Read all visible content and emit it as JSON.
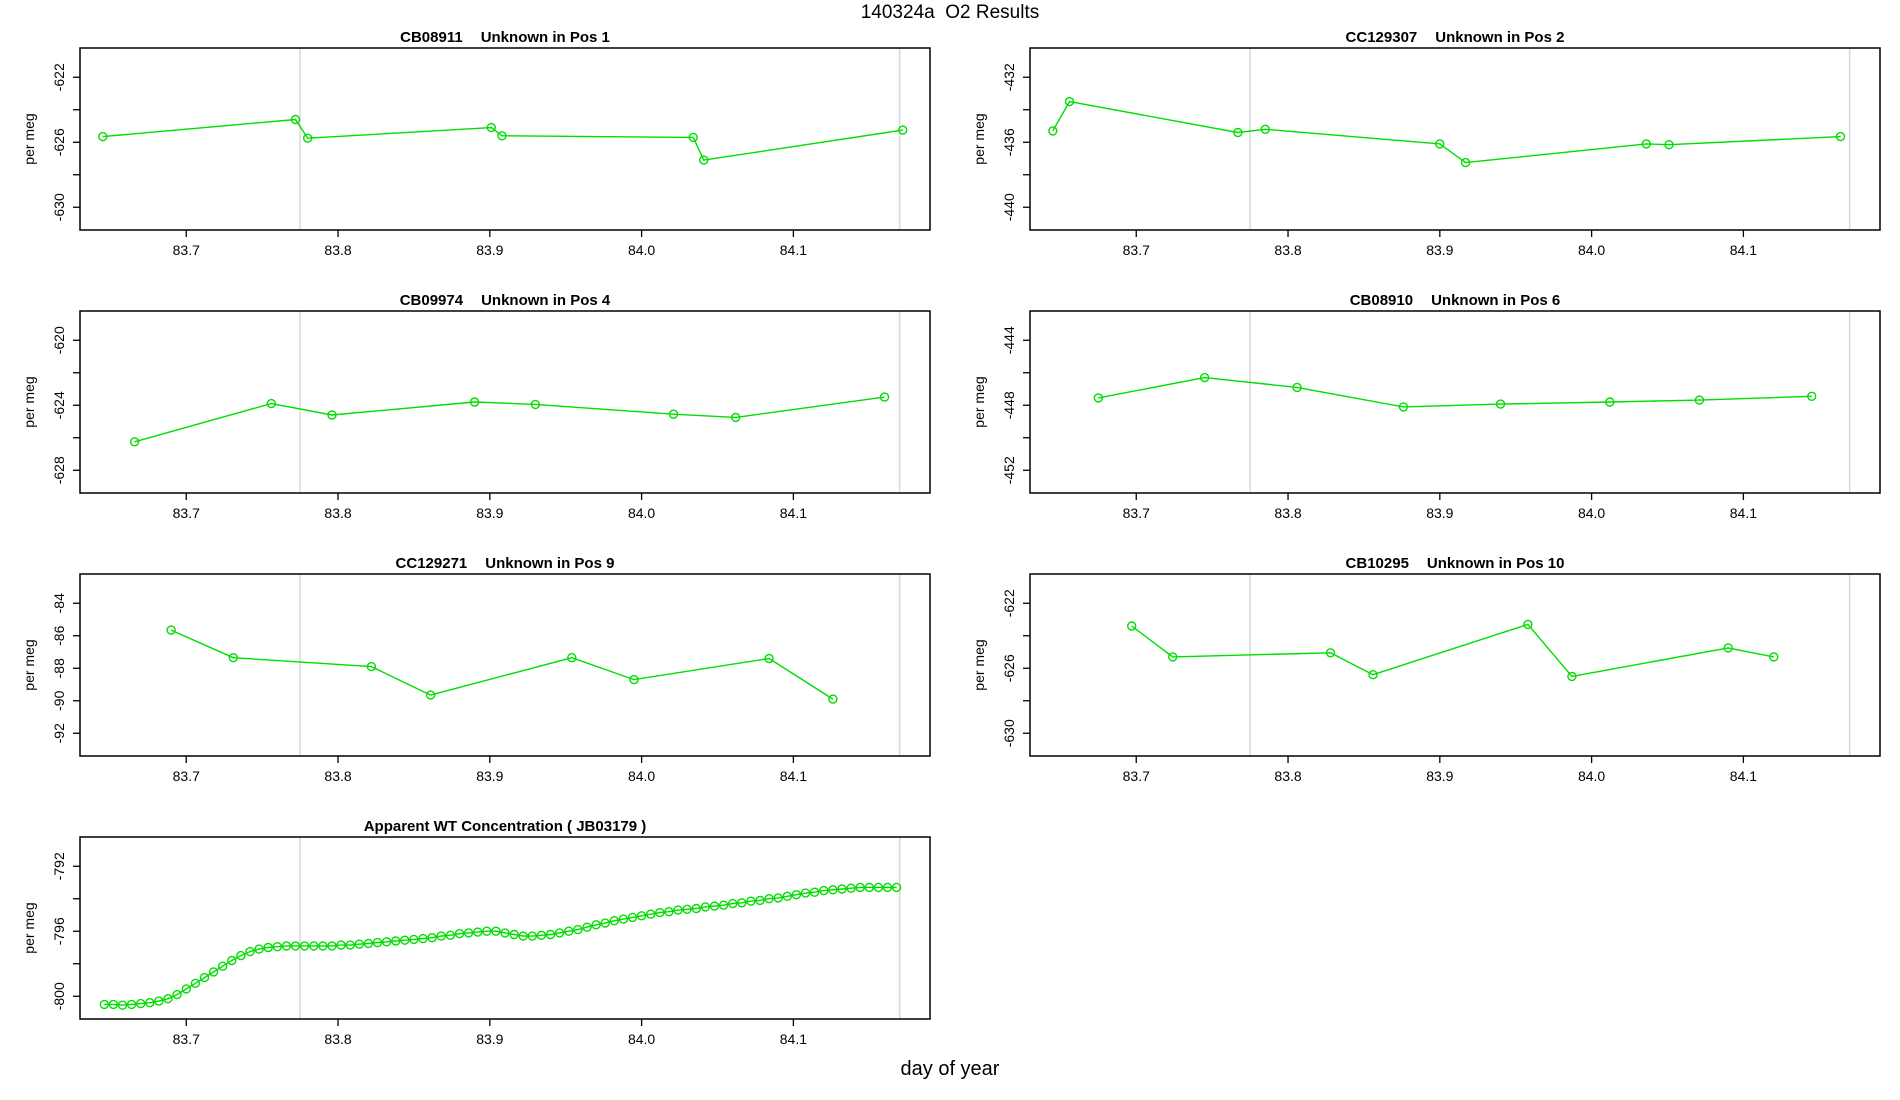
{
  "page_title": "140324a  O2 Results",
  "outer_xlabel": "day of year",
  "colors": {
    "series_green": "#00dd00",
    "reference_line_gray": "#d9d9d9",
    "axis_black": "#000000",
    "background": "#ffffff"
  },
  "axes_common": {
    "xlim": [
      83.63,
      84.19
    ],
    "xticks": [
      83.7,
      83.8,
      83.9,
      84.0,
      84.1
    ],
    "xtick_labels": [
      "83.7",
      "83.8",
      "83.9",
      "84.0",
      "84.1"
    ],
    "reference_vlines": [
      83.775,
      84.17
    ],
    "grid": "off",
    "marker": "open-circle",
    "line_type": "overplotted (line + markers)"
  },
  "chart_data": [
    {
      "type": "line",
      "panel_id": "CB08911",
      "title": {
        "id": "CB08911",
        "desc": "Unknown in Pos 1"
      },
      "ylabel": "per meg",
      "ylim": [
        -631.4,
        -620.2
      ],
      "yticks": [
        {
          "v": -630,
          "label": "-630"
        },
        {
          "v": -628,
          "label": ""
        },
        {
          "v": -626,
          "label": "-626"
        },
        {
          "v": -624,
          "label": ""
        },
        {
          "v": -622,
          "label": "-622"
        }
      ],
      "x": [
        83.645,
        83.772,
        83.78,
        83.901,
        83.908,
        84.034,
        84.041,
        84.172
      ],
      "y": [
        -625.65,
        -624.6,
        -625.75,
        -625.1,
        -625.6,
        -625.7,
        -627.1,
        -625.25
      ]
    },
    {
      "type": "line",
      "panel_id": "CC129307",
      "title": {
        "id": "CC129307",
        "desc": "Unknown in Pos 2"
      },
      "ylabel": "per meg",
      "ylim": [
        -441.4,
        -430.2
      ],
      "yticks": [
        {
          "v": -440,
          "label": "-440"
        },
        {
          "v": -438,
          "label": ""
        },
        {
          "v": -436,
          "label": "-436"
        },
        {
          "v": -434,
          "label": ""
        },
        {
          "v": -432,
          "label": "-432"
        }
      ],
      "x": [
        83.645,
        83.656,
        83.767,
        83.785,
        83.9,
        83.917,
        84.036,
        84.051,
        84.164
      ],
      "y": [
        -435.3,
        -433.5,
        -435.4,
        -435.2,
        -436.1,
        -437.25,
        -436.1,
        -436.15,
        -435.65
      ]
    },
    {
      "type": "line",
      "panel_id": "CB09974",
      "title": {
        "id": "CB09974",
        "desc": "Unknown in Pos 4"
      },
      "ylabel": "per meg",
      "ylim": [
        -629.4,
        -618.2
      ],
      "yticks": [
        {
          "v": -628,
          "label": "-628"
        },
        {
          "v": -626,
          "label": ""
        },
        {
          "v": -624,
          "label": "-624"
        },
        {
          "v": -622,
          "label": ""
        },
        {
          "v": -620,
          "label": "-620"
        }
      ],
      "x": [
        83.666,
        83.756,
        83.796,
        83.89,
        83.93,
        84.021,
        84.062,
        84.16
      ],
      "y": [
        -626.25,
        -623.9,
        -624.6,
        -623.8,
        -623.95,
        -624.55,
        -624.75,
        -623.5
      ]
    },
    {
      "type": "line",
      "panel_id": "CB08910",
      "title": {
        "id": "CB08910",
        "desc": "Unknown in Pos 6"
      },
      "ylabel": "per meg",
      "ylim": [
        -453.4,
        -442.2
      ],
      "yticks": [
        {
          "v": -452,
          "label": "-452"
        },
        {
          "v": -450,
          "label": ""
        },
        {
          "v": -448,
          "label": "-448"
        },
        {
          "v": -446,
          "label": ""
        },
        {
          "v": -444,
          "label": "-444"
        }
      ],
      "x": [
        83.675,
        83.745,
        83.806,
        83.876,
        83.94,
        84.012,
        84.071,
        84.145
      ],
      "y": [
        -447.55,
        -446.3,
        -446.9,
        -448.1,
        -447.93,
        -447.8,
        -447.68,
        -447.45
      ]
    },
    {
      "type": "line",
      "panel_id": "CC129271",
      "title": {
        "id": "CC129271",
        "desc": "Unknown in Pos 9"
      },
      "ylabel": "per meg",
      "ylim": [
        -93.4,
        -82.2
      ],
      "yticks": [
        {
          "v": -92,
          "label": "-92"
        },
        {
          "v": -90,
          "label": "-90"
        },
        {
          "v": -88,
          "label": "-88"
        },
        {
          "v": -86,
          "label": "-86"
        },
        {
          "v": -84,
          "label": "-84"
        }
      ],
      "x": [
        83.69,
        83.731,
        83.822,
        83.861,
        83.954,
        83.995,
        84.084,
        84.126
      ],
      "y": [
        -85.65,
        -87.35,
        -87.9,
        -89.65,
        -87.35,
        -88.7,
        -87.4,
        -89.9
      ]
    },
    {
      "type": "line",
      "panel_id": "CB10295",
      "title": {
        "id": "CB10295",
        "desc": "Unknown in Pos 10"
      },
      "ylabel": "per meg",
      "ylim": [
        -631.4,
        -620.2
      ],
      "yticks": [
        {
          "v": -630,
          "label": "-630"
        },
        {
          "v": -628,
          "label": ""
        },
        {
          "v": -626,
          "label": "-626"
        },
        {
          "v": -624,
          "label": ""
        },
        {
          "v": -622,
          "label": "-622"
        }
      ],
      "x": [
        83.697,
        83.724,
        83.828,
        83.856,
        83.958,
        83.987,
        84.09,
        84.12
      ],
      "y": [
        -623.4,
        -625.3,
        -625.05,
        -626.4,
        -623.3,
        -626.5,
        -624.75,
        -625.3
      ]
    },
    {
      "type": "line",
      "panel_id": "JB03179",
      "title": {
        "id": "",
        "desc": "Apparent WT Concentration ( JB03179 )"
      },
      "ylabel": "per meg",
      "ylim": [
        -801.4,
        -790.2
      ],
      "yticks": [
        {
          "v": -800,
          "label": "-800"
        },
        {
          "v": -798,
          "label": ""
        },
        {
          "v": -796,
          "label": "-796"
        },
        {
          "v": -794,
          "label": ""
        },
        {
          "v": -792,
          "label": "-792"
        }
      ],
      "x": [
        83.646,
        83.652,
        83.658,
        83.664,
        83.67,
        83.676,
        83.682,
        83.688,
        83.694,
        83.7,
        83.706,
        83.712,
        83.718,
        83.724,
        83.73,
        83.736,
        83.742,
        83.748,
        83.754,
        83.76,
        83.766,
        83.772,
        83.778,
        83.784,
        83.79,
        83.796,
        83.802,
        83.808,
        83.814,
        83.82,
        83.826,
        83.832,
        83.838,
        83.844,
        83.85,
        83.856,
        83.862,
        83.868,
        83.874,
        83.88,
        83.886,
        83.892,
        83.898,
        83.904,
        83.91,
        83.916,
        83.922,
        83.928,
        83.934,
        83.94,
        83.946,
        83.952,
        83.958,
        83.964,
        83.97,
        83.976,
        83.982,
        83.988,
        83.994,
        84.0,
        84.006,
        84.012,
        84.018,
        84.024,
        84.03,
        84.036,
        84.042,
        84.048,
        84.054,
        84.06,
        84.066,
        84.072,
        84.078,
        84.084,
        84.09,
        84.096,
        84.102,
        84.108,
        84.114,
        84.12,
        84.126,
        84.132,
        84.138,
        84.144,
        84.15,
        84.156,
        84.162,
        84.168
      ],
      "y": [
        -800.5,
        -800.5,
        -800.55,
        -800.5,
        -800.45,
        -800.4,
        -800.3,
        -800.15,
        -799.9,
        -799.55,
        -799.2,
        -798.85,
        -798.5,
        -798.15,
        -797.8,
        -797.5,
        -797.25,
        -797.1,
        -797.0,
        -796.95,
        -796.9,
        -796.9,
        -796.9,
        -796.9,
        -796.9,
        -796.9,
        -796.85,
        -796.85,
        -796.8,
        -796.75,
        -796.7,
        -796.65,
        -796.6,
        -796.55,
        -796.5,
        -796.45,
        -796.4,
        -796.3,
        -796.25,
        -796.15,
        -796.1,
        -796.05,
        -796.0,
        -796.0,
        -796.1,
        -796.2,
        -796.3,
        -796.3,
        -796.25,
        -796.2,
        -796.1,
        -796.0,
        -795.9,
        -795.75,
        -795.6,
        -795.5,
        -795.35,
        -795.25,
        -795.15,
        -795.05,
        -794.95,
        -794.85,
        -794.8,
        -794.7,
        -794.65,
        -794.6,
        -794.5,
        -794.45,
        -794.4,
        -794.3,
        -794.25,
        -794.15,
        -794.1,
        -794.0,
        -793.95,
        -793.85,
        -793.75,
        -793.65,
        -793.6,
        -793.5,
        -793.45,
        -793.4,
        -793.35,
        -793.3,
        -793.3,
        -793.3,
        -793.3,
        -793.3
      ]
    }
  ]
}
